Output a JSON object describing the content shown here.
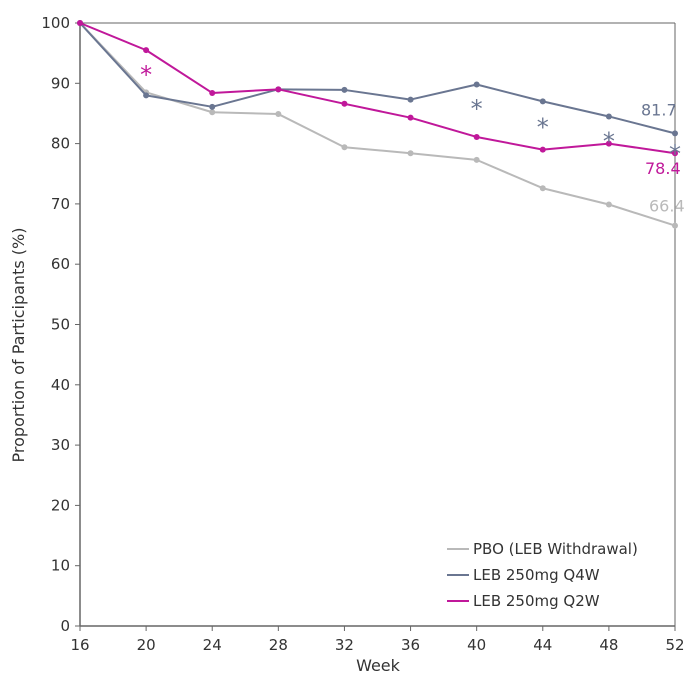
{
  "chart_data": {
    "type": "line",
    "title": "",
    "xlabel": "Week",
    "ylabel": "Proportion of Participants (%)",
    "x": [
      16,
      20,
      24,
      28,
      32,
      36,
      40,
      44,
      48,
      52
    ],
    "x_ticks": [
      "16",
      "20",
      "24",
      "28",
      "32",
      "36",
      "40",
      "44",
      "48",
      "52"
    ],
    "y_ticks": [
      "0",
      "10",
      "20",
      "30",
      "40",
      "50",
      "60",
      "70",
      "80",
      "90",
      "100"
    ],
    "xlim": [
      16,
      52
    ],
    "ylim": [
      0,
      100
    ],
    "grid": false,
    "legend_position": "bottom-right",
    "series": [
      {
        "name": "PBO (LEB Withdrawal)",
        "color": "#b9b9b9",
        "values": [
          100,
          88.5,
          85.2,
          84.9,
          79.4,
          78.4,
          77.3,
          72.6,
          69.9,
          66.4
        ],
        "end_label": "66.4"
      },
      {
        "name": "LEB 250mg Q4W",
        "color": "#6a7691",
        "values": [
          100,
          88.0,
          86.1,
          89.0,
          88.9,
          87.3,
          89.8,
          87.0,
          84.5,
          81.7
        ],
        "end_label": "81.7"
      },
      {
        "name": "LEB 250mg Q2W",
        "color": "#c0189a",
        "values": [
          100,
          95.5,
          88.4,
          89.0,
          86.6,
          84.3,
          81.1,
          79.0,
          80.0,
          78.4
        ],
        "end_label": "78.4"
      }
    ],
    "annotations": [
      {
        "text": "*",
        "x": 20,
        "y": 92.0,
        "series": 2
      },
      {
        "text": "*",
        "x": 40,
        "y": 86.4,
        "series": 1
      },
      {
        "text": "*",
        "x": 44,
        "y": 83.3,
        "series": 1
      },
      {
        "text": "*",
        "x": 48,
        "y": 81.0,
        "series": 1
      },
      {
        "text": "*",
        "x": 52,
        "y": 78.9,
        "series": 1
      }
    ]
  }
}
